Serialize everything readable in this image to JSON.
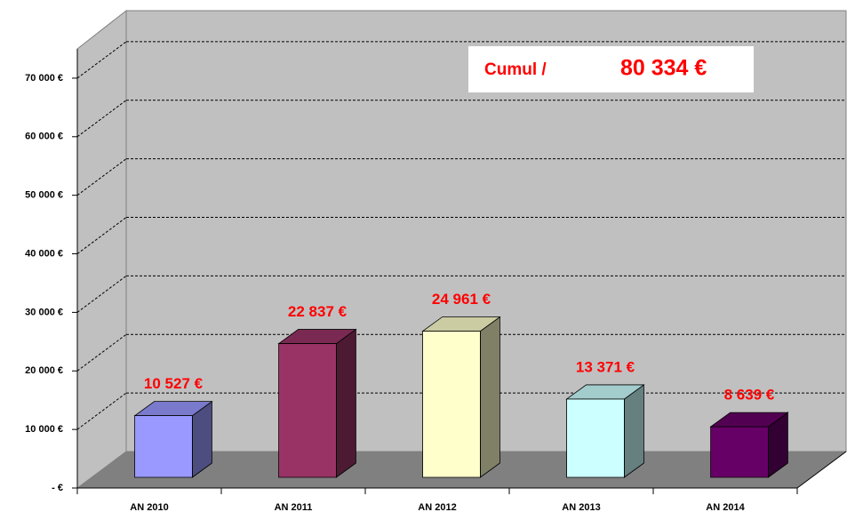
{
  "chart_data": {
    "type": "bar",
    "categories": [
      "AN 2010",
      "AN 2011",
      "AN 2012",
      "AN 2013",
      "AN 2014"
    ],
    "values": [
      10527,
      22837,
      24961,
      13371,
      8639
    ],
    "value_labels": [
      "10 527 €",
      "22 837 €",
      "24 961 €",
      "13 371 €",
      "8 639 €"
    ],
    "colors": [
      "#9999ff",
      "#993366",
      "#ffffcc",
      "#ccffff",
      "#660066"
    ],
    "ylim": [
      0,
      75000
    ],
    "yticks": [
      {
        "value": 0,
        "label": "-   €"
      },
      {
        "value": 10000,
        "label": "10 000 €"
      },
      {
        "value": 20000,
        "label": "20 000 €"
      },
      {
        "value": 30000,
        "label": "30 000 €"
      },
      {
        "value": 40000,
        "label": "40 000 €"
      },
      {
        "value": 50000,
        "label": "50 000 €"
      },
      {
        "value": 60000,
        "label": "60 000 €"
      },
      {
        "value": 70000,
        "label": "70 000 €"
      }
    ],
    "grid": true,
    "annotation": {
      "label": "Cumul /",
      "value_label": "80 334 €"
    }
  }
}
